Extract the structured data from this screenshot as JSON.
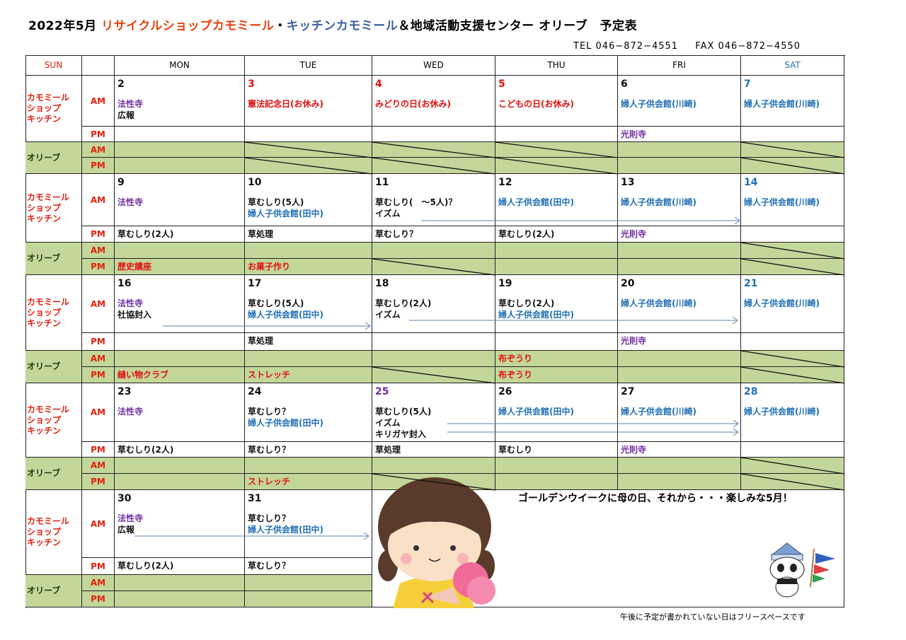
{
  "title": {
    "prefix": "2022年5月",
    "shop": "リサイクルショップカモミール",
    "sep": "・",
    "kitchen": "キッチンカモミール",
    "suffix": "＆地域活動支援センター オリーブ　予定表"
  },
  "contact": {
    "tel": "TEL 046−872−4551",
    "fax": "FAX 046−872−4550"
  },
  "colors": {
    "k": "#111111",
    "p": "#7030a0",
    "b": "#1f6fb5",
    "r": "#e01010",
    "title_red": "#e8410e",
    "title_blue": "#3b5fa0",
    "green": "#c4d79b"
  },
  "header": {
    "sun": "SUN",
    "days": [
      "MON",
      "TUE",
      "WED",
      "THU",
      "FRI",
      "SAT"
    ]
  },
  "labels": {
    "kamomile": "カモミール\nショップ\nキッチン",
    "olive": "オリーブ",
    "am": "AM",
    "pm": "PM"
  },
  "weeks": [
    {
      "days": [
        {
          "d": "2",
          "c": "k",
          "am": [
            [
              "法性寺",
              "p"
            ],
            [
              "広報",
              "k"
            ]
          ],
          "pm": [],
          "oam": [],
          "opm": []
        },
        {
          "d": "3",
          "c": "r",
          "am": [
            [
              "憲法記念日(お休み)",
              "r"
            ]
          ],
          "pm": [],
          "oam": [],
          "opm": [],
          "oam_x": true,
          "opm_x": true
        },
        {
          "d": "4",
          "c": "r",
          "am": [
            [
              "みどりの日(お休み)",
              "r"
            ]
          ],
          "pm": [],
          "oam": [],
          "opm": [],
          "oam_x": true,
          "opm_x": true
        },
        {
          "d": "5",
          "c": "r",
          "am": [
            [
              "こどもの日(お休み)",
              "r"
            ]
          ],
          "pm": [],
          "oam": [],
          "opm": [],
          "oam_x": true,
          "opm_x": true
        },
        {
          "d": "6",
          "c": "k",
          "am": [
            [
              "婦人子供会館(川崎)",
              "b"
            ]
          ],
          "pm": [
            [
              "光則寺",
              "p"
            ]
          ],
          "oam": [],
          "opm": []
        },
        {
          "d": "7",
          "c": "b",
          "am": [
            [
              "婦人子供会館(川崎)",
              "b"
            ]
          ],
          "pm": [],
          "oam": [],
          "opm": [],
          "oam_x": true,
          "opm_x": true
        }
      ]
    },
    {
      "days": [
        {
          "d": "9",
          "c": "k",
          "am": [
            [
              "法性寺",
              "p"
            ]
          ],
          "pm": [
            [
              "草むしり(2人)",
              "k"
            ]
          ],
          "oam": [],
          "opm": [
            [
              "歴史講座",
              "r"
            ]
          ]
        },
        {
          "d": "10",
          "c": "k",
          "am": [
            [
              "草むしり(5人)",
              "k"
            ],
            [
              "婦人子供会館(田中)",
              "b"
            ]
          ],
          "pm": [
            [
              "草処理",
              "k"
            ]
          ],
          "oam": [],
          "opm": [
            [
              "お菓子作り",
              "r"
            ]
          ]
        },
        {
          "d": "11",
          "c": "k",
          "am": [
            [
              "草むしり(　～5人)？",
              "k"
            ],
            [
              "イズム",
              "k"
            ]
          ],
          "pm": [
            [
              "草むしり？",
              "k"
            ]
          ],
          "oam": [],
          "opm": [],
          "opm_x": true
        },
        {
          "d": "12",
          "c": "k",
          "am": [
            [
              "婦人子供会館(田中)",
              "b"
            ]
          ],
          "pm": [
            [
              "草むしり(2人)",
              "k"
            ]
          ],
          "oam": [],
          "opm": []
        },
        {
          "d": "13",
          "c": "k",
          "am": [
            [
              "婦人子供会館(川崎)",
              "b"
            ]
          ],
          "pm": [
            [
              "光則寺",
              "p"
            ]
          ],
          "oam": [],
          "opm": []
        },
        {
          "d": "14",
          "c": "b",
          "am": [
            [
              "婦人子供会館(川崎)",
              "b"
            ]
          ],
          "pm": [],
          "oam": [],
          "opm": [],
          "oam_x": true,
          "opm_x": true
        }
      ]
    },
    {
      "days": [
        {
          "d": "16",
          "c": "k",
          "am": [
            [
              "法性寺",
              "p"
            ],
            [
              "社協封入",
              "k"
            ]
          ],
          "pm": [],
          "oam": [],
          "opm": [
            [
              "縫い物クラブ",
              "r"
            ]
          ]
        },
        {
          "d": "17",
          "c": "k",
          "am": [
            [
              "草むしり(5人)",
              "k"
            ],
            [
              "婦人子供会館(田中)",
              "b"
            ]
          ],
          "pm": [
            [
              "草処理",
              "k"
            ]
          ],
          "oam": [],
          "opm": [
            [
              "ストレッチ",
              "r"
            ]
          ]
        },
        {
          "d": "18",
          "c": "k",
          "am": [
            [
              "草むしり(2人)",
              "k"
            ],
            [
              "イズム",
              "k"
            ]
          ],
          "pm": [],
          "oam": [],
          "opm": [],
          "opm_x": true
        },
        {
          "d": "19",
          "c": "k",
          "am": [
            [
              "草むしり(2人)",
              "k"
            ],
            [
              "婦人子供会館(田中)",
              "b"
            ]
          ],
          "pm": [],
          "oam": [
            [
              "布ぞうり",
              "r"
            ]
          ],
          "opm": [
            [
              "布ぞうり",
              "r"
            ]
          ]
        },
        {
          "d": "20",
          "c": "k",
          "am": [
            [
              "婦人子供会館(川崎)",
              "b"
            ]
          ],
          "pm": [
            [
              "光則寺",
              "p"
            ]
          ],
          "oam": [],
          "opm": []
        },
        {
          "d": "21",
          "c": "b",
          "am": [
            [
              "婦人子供会館(川崎)",
              "b"
            ]
          ],
          "pm": [],
          "oam": [],
          "opm": [],
          "oam_x": true,
          "opm_x": true
        }
      ]
    },
    {
      "days": [
        {
          "d": "23",
          "c": "k",
          "am": [
            [
              "法性寺",
              "p"
            ]
          ],
          "pm": [
            [
              "草むしり(2人)",
              "k"
            ]
          ],
          "oam": [],
          "opm": []
        },
        {
          "d": "24",
          "c": "k",
          "am": [
            [
              "草むしり？",
              "k"
            ],
            [
              "婦人子供会館(田中)",
              "b"
            ]
          ],
          "pm": [
            [
              "草むしり？",
              "k"
            ]
          ],
          "oam": [],
          "opm": [
            [
              "ストレッチ",
              "r"
            ]
          ]
        },
        {
          "d": "25",
          "c": "p",
          "am": [
            [
              "草むしり(5人)",
              "k"
            ],
            [
              "イズム",
              "k"
            ],
            [
              "キリガヤ封入",
              "k"
            ]
          ],
          "pm": [
            [
              "草処理",
              "k"
            ]
          ],
          "oam": [],
          "opm": [],
          "opm_x": true
        },
        {
          "d": "26",
          "c": "k",
          "am": [
            [
              "婦人子供会館(田中)",
              "b"
            ]
          ],
          "pm": [
            [
              "草むしり",
              "k"
            ]
          ],
          "oam": [],
          "opm": []
        },
        {
          "d": "27",
          "c": "k",
          "am": [
            [
              "婦人子供会館(川崎)",
              "b"
            ]
          ],
          "pm": [
            [
              "光則寺",
              "p"
            ]
          ],
          "oam": [],
          "opm": []
        },
        {
          "d": "28",
          "c": "b",
          "am": [
            [
              "婦人子供会館(川崎)",
              "b"
            ]
          ],
          "pm": [],
          "oam": [],
          "opm": [],
          "oam_x": true,
          "opm_x": true
        }
      ]
    },
    {
      "days": [
        {
          "d": "30",
          "c": "k",
          "am": [
            [
              "法性寺",
              "p"
            ],
            [
              "広報",
              "k"
            ]
          ],
          "pm": [
            [
              "草むしり(2人)",
              "k"
            ]
          ],
          "oam": [],
          "opm": []
        },
        {
          "d": "31",
          "c": "k",
          "am": [
            [
              "草むしり？",
              "k"
            ],
            [
              "婦人子供会館(田中)",
              "b"
            ]
          ],
          "pm": [
            [
              "草むしり？",
              "k"
            ]
          ],
          "oam": [],
          "opm": []
        }
      ]
    }
  ],
  "message": "ゴールデンウイークに母の日、それから・・・楽しみな5月！",
  "footnote": "午後に予定が書かれていない日はフリースペースです",
  "illustrations": [
    "girl-with-flowers",
    "panda-with-carp-streamer"
  ]
}
